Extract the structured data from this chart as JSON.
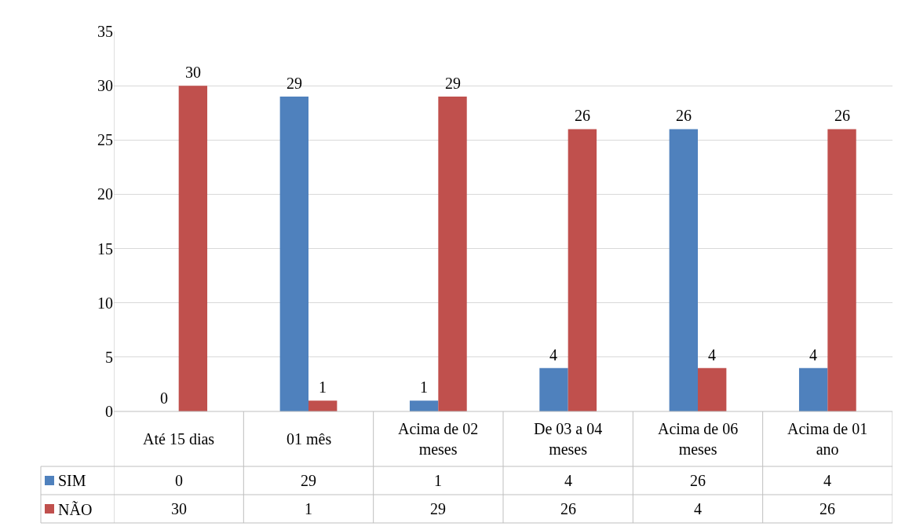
{
  "chart_data": {
    "type": "bar",
    "categories": [
      "Até 15 dias",
      "01 mês",
      "Acima de 02 meses",
      "De 03 a 04 meses",
      "Acima de 06 meses",
      "Acima de 01 ano"
    ],
    "series": [
      {
        "name": "SIM",
        "color": "#4f81bd",
        "values": [
          0,
          29,
          1,
          4,
          26,
          4
        ],
        "value_labels": [
          "0",
          "29",
          "1",
          "4",
          "26",
          "4"
        ]
      },
      {
        "name": "NÃO",
        "color": "#c0504d",
        "values": [
          30,
          1,
          29,
          26,
          4,
          26
        ],
        "value_labels": [
          "30",
          "1",
          "29",
          "26",
          "4",
          "26"
        ]
      }
    ],
    "ylim": [
      0,
      35
    ],
    "yticks": [
      0,
      5,
      10,
      15,
      20,
      25,
      30,
      35
    ],
    "grid": "y",
    "data_labels": true,
    "legend": "bottom"
  }
}
